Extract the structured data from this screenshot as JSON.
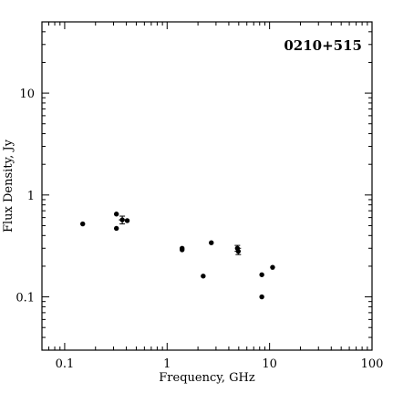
{
  "chart_data": {
    "type": "scatter",
    "title": "0210+515",
    "xlabel": "Frequency, GHz",
    "ylabel": "Flux Density, Jy",
    "xscale": "log",
    "yscale": "log",
    "xlim": [
      0.06,
      100
    ],
    "ylim": [
      0.03,
      50
    ],
    "grid": false,
    "legend": "none",
    "xticks": [
      {
        "value": 0.1,
        "label": "0.1"
      },
      {
        "value": 1,
        "label": "1"
      },
      {
        "value": 10,
        "label": "10"
      },
      {
        "value": 100,
        "label": "100"
      }
    ],
    "yticks": [
      {
        "value": 0.1,
        "label": "0.1"
      },
      {
        "value": 1,
        "label": "1"
      },
      {
        "value": 10,
        "label": "10"
      }
    ],
    "series": [
      {
        "points": [
          {
            "x": 0.15,
            "y": 0.52
          },
          {
            "x": 0.32,
            "y": 0.65
          },
          {
            "x": 0.32,
            "y": 0.47
          },
          {
            "x": 0.365,
            "y": 0.57,
            "yerr": [
              0.52,
              0.62
            ],
            "xerr": [
              0.338,
              0.394
            ]
          },
          {
            "x": 0.408,
            "y": 0.56
          },
          {
            "x": 1.4,
            "y": 0.3
          },
          {
            "x": 1.4,
            "y": 0.29
          },
          {
            "x": 2.25,
            "y": 0.16
          },
          {
            "x": 2.7,
            "y": 0.34
          },
          {
            "x": 4.85,
            "y": 0.3,
            "yerr": [
              0.28,
              0.32
            ]
          },
          {
            "x": 4.95,
            "y": 0.28,
            "yerr": [
              0.26,
              0.3
            ]
          },
          {
            "x": 8.4,
            "y": 0.165
          },
          {
            "x": 8.4,
            "y": 0.1
          },
          {
            "x": 10.7,
            "y": 0.195
          }
        ]
      }
    ],
    "color": "#000000"
  }
}
